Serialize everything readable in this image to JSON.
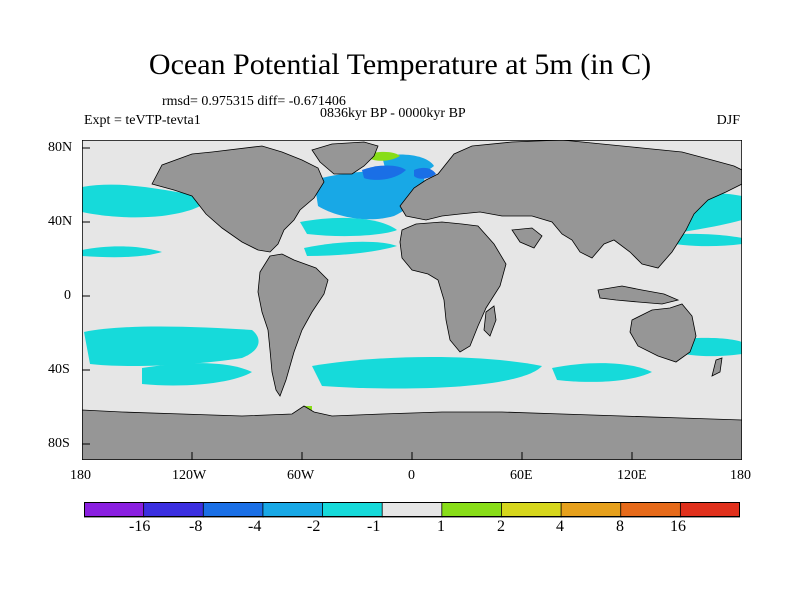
{
  "title": "Ocean Potential Temperature at 5m (in C)",
  "stats": "rmsd= 0.975315 diff= -0.671406",
  "period": "0836kyr BP - 0000kyr BP",
  "experiment": "Expt = teVTP-tevta1",
  "season": "DJF",
  "y_ticks": [
    "80N",
    "40N",
    "0",
    "40S",
    "80S"
  ],
  "x_ticks": [
    "180",
    "120W",
    "60W",
    "0",
    "60E",
    "120E",
    "180"
  ],
  "colorbar": {
    "labels": [
      "-16",
      "-8",
      "-4",
      "-2",
      "-1",
      "1",
      "2",
      "4",
      "8",
      "16"
    ],
    "colors": [
      "#8a1fe0",
      "#3b2fe0",
      "#1a6fe6",
      "#18a8e6",
      "#16dada",
      "#e6e6e6",
      "#88dd18",
      "#d6d61c",
      "#e6a01c",
      "#e66a1a",
      "#e0301c"
    ]
  },
  "colors": {
    "land": "#969696",
    "ocean": "#e6e6e6",
    "cyan": "#16dada",
    "light_blue": "#18a8e6",
    "blue": "#1a6fe6",
    "green": "#88dd18"
  }
}
